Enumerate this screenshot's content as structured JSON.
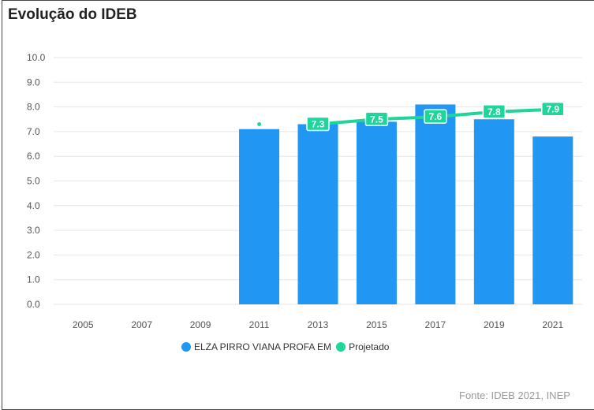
{
  "header": {
    "title": "Evolução do IDEB"
  },
  "legend": {
    "school_label": "ELZA PIRRO VIANA PROFA EM",
    "projected_label": "Projetado"
  },
  "footer": {
    "source": "Fonte: IDEB 2021, INEP"
  },
  "colors": {
    "bar": "#2196f3",
    "projected": "#1fd69a",
    "grid": "#e6e6e6"
  },
  "chart_data": {
    "type": "bar",
    "title": "Evolução do IDEB",
    "categories": [
      "2005",
      "2007",
      "2009",
      "2011",
      "2013",
      "2015",
      "2017",
      "2019",
      "2021"
    ],
    "ylim": [
      0,
      10
    ],
    "yticks": [
      "0.0",
      "1.0",
      "2.0",
      "3.0",
      "4.0",
      "5.0",
      "6.0",
      "7.0",
      "8.0",
      "9.0",
      "10.0"
    ],
    "grid": true,
    "legend_position": "bottom",
    "series": [
      {
        "name": "ELZA PIRRO VIANA PROFA EM",
        "type": "bar",
        "values": [
          null,
          null,
          null,
          7.1,
          7.3,
          7.4,
          8.1,
          7.5,
          6.8
        ]
      },
      {
        "name": "Projetado",
        "type": "line",
        "values": [
          null,
          null,
          null,
          7.3,
          7.3,
          7.5,
          7.6,
          7.8,
          7.9
        ],
        "labels": [
          null,
          null,
          null,
          null,
          "7.3",
          "7.5",
          "7.6",
          "7.8",
          "7.9"
        ]
      }
    ]
  }
}
